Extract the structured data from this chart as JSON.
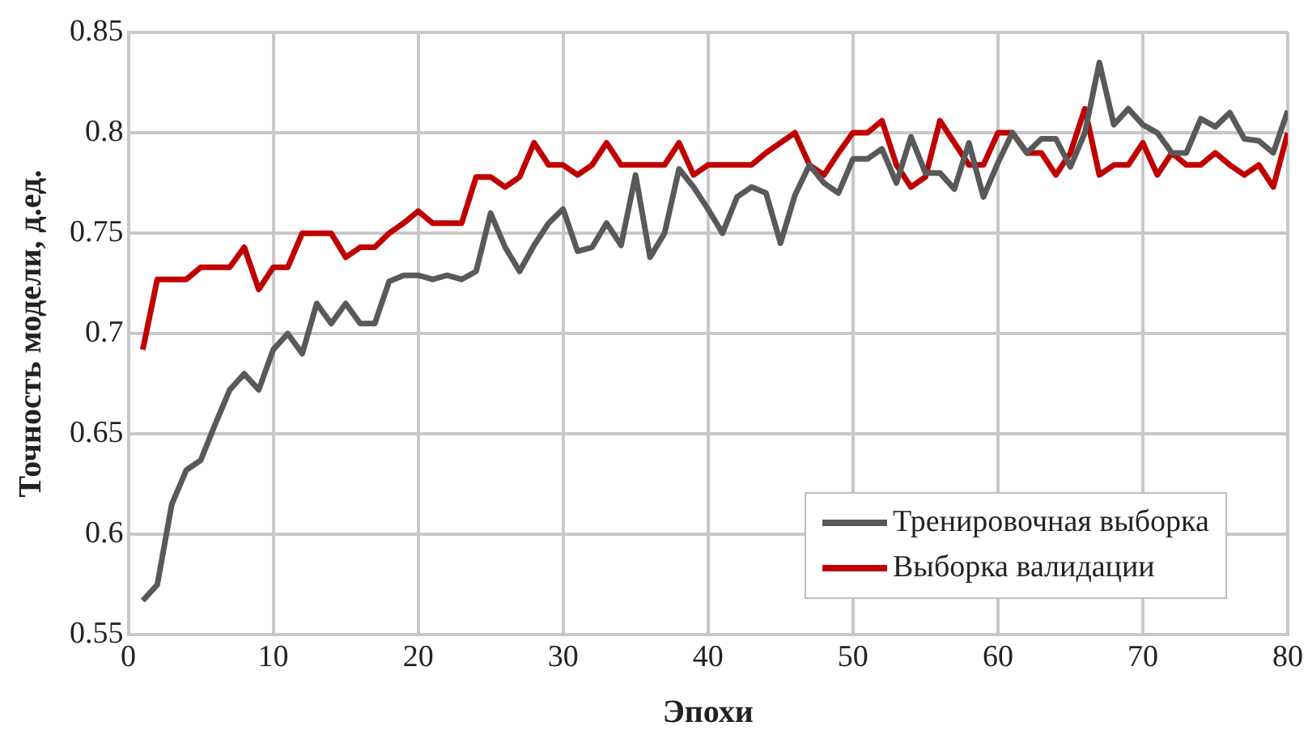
{
  "chart_data": {
    "type": "line",
    "xlabel": "Эпохи",
    "ylabel": "Точность модели, д.ед.",
    "x": [
      1,
      2,
      3,
      4,
      5,
      6,
      7,
      8,
      9,
      10,
      11,
      12,
      13,
      14,
      15,
      16,
      17,
      18,
      19,
      20,
      21,
      22,
      23,
      24,
      25,
      26,
      27,
      28,
      29,
      30,
      31,
      32,
      33,
      34,
      35,
      36,
      37,
      38,
      39,
      40,
      41,
      42,
      43,
      44,
      45,
      46,
      47,
      48,
      49,
      50,
      51,
      52,
      53,
      54,
      55,
      56,
      57,
      58,
      59,
      60,
      61,
      62,
      63,
      64,
      65,
      66,
      67,
      68,
      69,
      70,
      71,
      72,
      73,
      74,
      75,
      76,
      77,
      78,
      79,
      80
    ],
    "series": [
      {
        "name": "Тренировочная выборка",
        "color": "#595959",
        "values": [
          0.567,
          0.575,
          0.615,
          0.632,
          0.637,
          0.655,
          0.672,
          0.68,
          0.672,
          0.692,
          0.7,
          0.69,
          0.715,
          0.705,
          0.715,
          0.705,
          0.705,
          0.726,
          0.729,
          0.729,
          0.727,
          0.729,
          0.727,
          0.731,
          0.76,
          0.743,
          0.731,
          0.744,
          0.755,
          0.762,
          0.741,
          0.743,
          0.755,
          0.744,
          0.779,
          0.738,
          0.75,
          0.782,
          0.773,
          0.762,
          0.75,
          0.768,
          0.773,
          0.77,
          0.745,
          0.769,
          0.784,
          0.775,
          0.77,
          0.787,
          0.787,
          0.792,
          0.775,
          0.798,
          0.78,
          0.78,
          0.772,
          0.795,
          0.768,
          0.785,
          0.8,
          0.79,
          0.797,
          0.797,
          0.783,
          0.8,
          0.835,
          0.804,
          0.812,
          0.804,
          0.8,
          0.79,
          0.79,
          0.807,
          0.803,
          0.81,
          0.797,
          0.796,
          0.79,
          0.811
        ]
      },
      {
        "name": "Выборка валидации",
        "color": "#c00000",
        "values": [
          0.692,
          0.727,
          0.727,
          0.727,
          0.733,
          0.733,
          0.733,
          0.743,
          0.722,
          0.733,
          0.733,
          0.75,
          0.75,
          0.75,
          0.738,
          0.743,
          0.743,
          0.75,
          0.755,
          0.761,
          0.755,
          0.755,
          0.755,
          0.778,
          0.778,
          0.773,
          0.778,
          0.795,
          0.784,
          0.784,
          0.779,
          0.784,
          0.795,
          0.784,
          0.784,
          0.784,
          0.784,
          0.795,
          0.779,
          0.784,
          0.784,
          0.784,
          0.784,
          0.79,
          0.795,
          0.8,
          0.784,
          0.779,
          0.79,
          0.8,
          0.8,
          0.806,
          0.784,
          0.773,
          0.778,
          0.806,
          0.795,
          0.784,
          0.784,
          0.8,
          0.8,
          0.79,
          0.79,
          0.779,
          0.79,
          0.812,
          0.779,
          0.784,
          0.784,
          0.795,
          0.779,
          0.79,
          0.784,
          0.784,
          0.79,
          0.784,
          0.779,
          0.784,
          0.773,
          0.8
        ]
      }
    ],
    "xlim": [
      0,
      80
    ],
    "xticks": [
      0,
      10,
      20,
      30,
      40,
      50,
      60,
      70,
      80
    ],
    "ylim": [
      0.55,
      0.85
    ],
    "yticks": [
      0.55,
      0.6,
      0.65,
      0.7,
      0.75,
      0.8,
      0.85
    ],
    "grid": true,
    "legend": "bottom right",
    "marker": "none",
    "line_style": "solid"
  }
}
